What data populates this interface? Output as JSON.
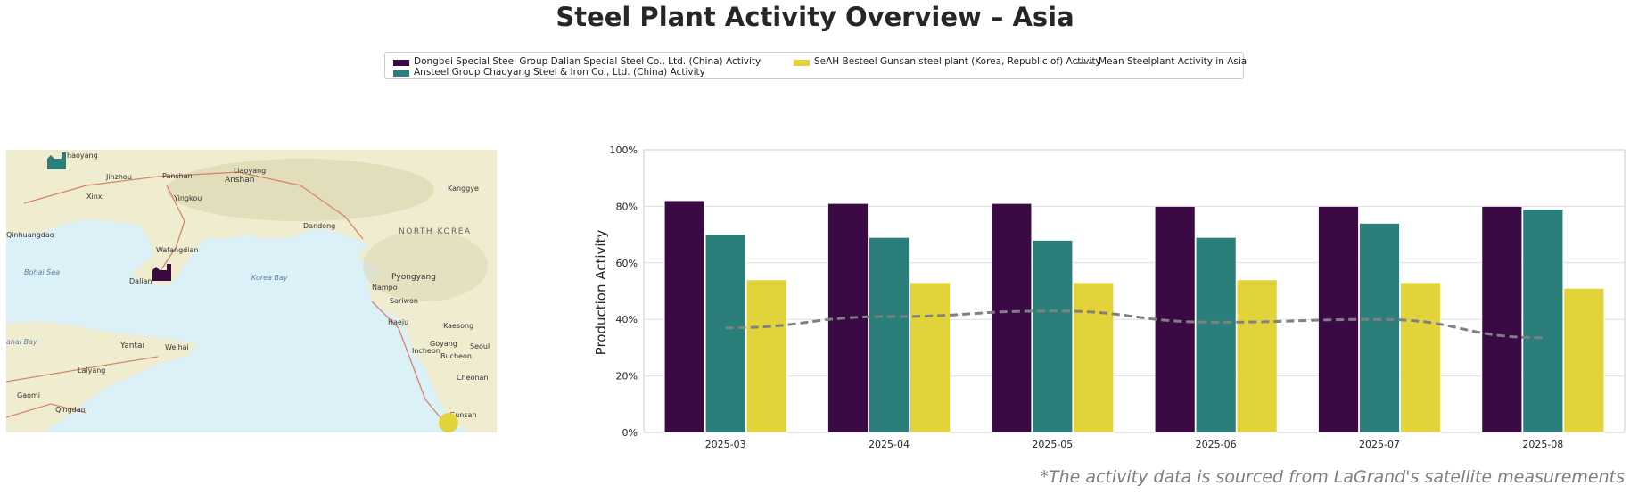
{
  "title": "Steel Plant Activity Overview – Asia",
  "legend": {
    "items": [
      {
        "label": "Dongbei Special Steel Group Dalian Special Steel Co., Ltd. (China) Activity",
        "color": "#3b0a45"
      },
      {
        "label": "Ansteel Group Chaoyang Steel & Iron Co., Ltd. (China) Activity",
        "color": "#2a7f7a"
      },
      {
        "label": "SeAH Besteel Gunsan steel plant (Korea, Republic of) Activity",
        "color": "#e3d33b"
      },
      {
        "label": "Mean Steelplant Activity in Asia",
        "color": "#808080"
      }
    ]
  },
  "map": {
    "labels": {
      "chaoyang": "haoyang",
      "jinzhou": "Jinzhou",
      "panshan": "Panshan",
      "liaoyang": "Liaoyang",
      "anshan": "Anshan",
      "xinxi": "Xinxi",
      "yingkou": "Yingkou",
      "kanggye": "Kanggye",
      "dandong": "Dandong",
      "north_korea": "NORTH KOREA",
      "qinhuangdao": "Qinhuangdao",
      "wafangdian": "Wafangdian",
      "bohai_sea": "Bohai Sea",
      "dalian": "Dalian",
      "korea_bay": "Korea Bay",
      "pyongyang": "Pyongyang",
      "nampo": "Nampo",
      "sariwon": "Sariwon",
      "haeju": "Haeju",
      "kaesong": "Kaesong",
      "yantai": "Yantai",
      "weihai": "Weihai",
      "goyang": "Goyang",
      "seoul": "Seoul",
      "incheon": "Incheon",
      "bucheon": "Bucheon",
      "laiyang": "Laiyang",
      "gaomi": "Gaomi",
      "qingdao": "Qingdao",
      "cheonan": "Cheonan",
      "gunsan": "Gunsan",
      "bay": "ahai Bay"
    }
  },
  "chart_data": {
    "type": "bar",
    "categories": [
      "2025-03",
      "2025-04",
      "2025-05",
      "2025-06",
      "2025-07",
      "2025-08"
    ],
    "series": [
      {
        "name": "Dongbei Special Steel Group Dalian Special Steel Co., Ltd. (China) Activity",
        "values": [
          82,
          81,
          81,
          80,
          80,
          80
        ],
        "color": "#3b0a45"
      },
      {
        "name": "Ansteel Group Chaoyang Steel & Iron Co., Ltd. (China) Activity",
        "values": [
          70,
          69,
          68,
          69,
          74,
          79
        ],
        "color": "#2a7f7a"
      },
      {
        "name": "SeAH Besteel Gunsan steel plant (Korea, Republic of) Activity",
        "values": [
          54,
          53,
          53,
          54,
          53,
          51
        ],
        "color": "#e3d33b"
      }
    ],
    "mean_line": {
      "name": "Mean Steelplant Activity in Asia",
      "values": [
        37,
        41,
        43,
        39,
        40,
        33.5
      ],
      "color": "#808080"
    },
    "ylabel": "Production Activity",
    "ylim": [
      0,
      100
    ],
    "yticks": [
      "0%",
      "20%",
      "40%",
      "60%",
      "80%",
      "100%"
    ],
    "grid": true,
    "legend_position": "top-center"
  },
  "footnote": "*The activity data is sourced from LaGrand's satellite measurements"
}
